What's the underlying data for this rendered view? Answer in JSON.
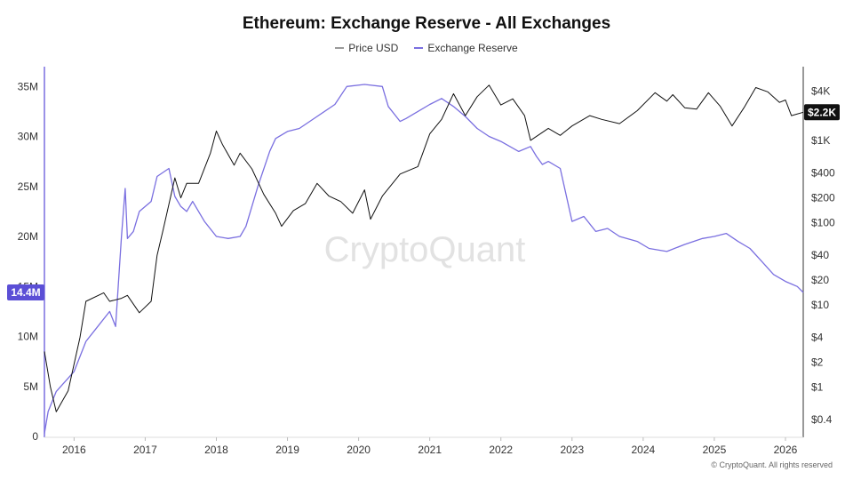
{
  "chart_data": {
    "type": "line",
    "title": "Ethereum: Exchange Reserve - All Exchanges",
    "legend_position": "top-center",
    "grid": false,
    "watermark": "CryptoQuant",
    "footer": "© CryptoQuant. All rights reserved",
    "x_ticks": [
      "2016",
      "2017",
      "2018",
      "2019",
      "2020",
      "2021",
      "2022",
      "2023",
      "2024",
      "2025",
      "2026"
    ],
    "x_range": [
      "2015-08",
      "2026-04"
    ],
    "left_axis": {
      "ticks": [
        "0",
        "5M",
        "10M",
        "15M",
        "20M",
        "25M",
        "30M",
        "35M"
      ],
      "range": [
        0,
        36000000
      ],
      "current_label": "14.4M",
      "current_value": 14400000,
      "color": "#6a5fd6"
    },
    "right_axis": {
      "scale": "log",
      "ticks": [
        "$4K",
        "$1K",
        "$400",
        "$200",
        "$100",
        "$40",
        "$20",
        "$10",
        "$4",
        "$2",
        "$1",
        "$0.4"
      ],
      "range": [
        0.25,
        6000
      ],
      "current_label": "$2.2K",
      "current_value": 2200,
      "color": "#111111"
    },
    "series": [
      {
        "name": "Exchange Reserve",
        "axis": "left",
        "color": "#7a6fe0",
        "points": [
          [
            "2015-08",
            0.3
          ],
          [
            "2015-08-20",
            2.5
          ],
          [
            "2015-10",
            4.5
          ],
          [
            "2016-01",
            6.5
          ],
          [
            "2016-03",
            9.5
          ],
          [
            "2016-05",
            11.0
          ],
          [
            "2016-07",
            12.5
          ],
          [
            "2016-08",
            11.0
          ],
          [
            "2016-09",
            20.0
          ],
          [
            "2016-09-20",
            24.8
          ],
          [
            "2016-10",
            19.8
          ],
          [
            "2016-11",
            20.5
          ],
          [
            "2016-12",
            22.5
          ],
          [
            "2017-02",
            23.5
          ],
          [
            "2017-03",
            26.0
          ],
          [
            "2017-05",
            26.8
          ],
          [
            "2017-06",
            24.0
          ],
          [
            "2017-07",
            23.0
          ],
          [
            "2017-08",
            22.5
          ],
          [
            "2017-09",
            23.5
          ],
          [
            "2017-10",
            22.5
          ],
          [
            "2017-11",
            21.5
          ],
          [
            "2018-01",
            20.0
          ],
          [
            "2018-03",
            19.8
          ],
          [
            "2018-05",
            20.0
          ],
          [
            "2018-06",
            21.0
          ],
          [
            "2018-08",
            25.0
          ],
          [
            "2018-10",
            28.5
          ],
          [
            "2018-11",
            29.8
          ],
          [
            "2019-01",
            30.5
          ],
          [
            "2019-03",
            30.8
          ],
          [
            "2019-06",
            32.0
          ],
          [
            "2019-09",
            33.2
          ],
          [
            "2019-11",
            35.0
          ],
          [
            "2020-02",
            35.2
          ],
          [
            "2020-05",
            35.0
          ],
          [
            "2020-06",
            33.0
          ],
          [
            "2020-08",
            31.5
          ],
          [
            "2020-09",
            31.8
          ],
          [
            "2020-11",
            32.5
          ],
          [
            "2021-01",
            33.2
          ],
          [
            "2021-03",
            33.8
          ],
          [
            "2021-05",
            33.0
          ],
          [
            "2021-07",
            32.0
          ],
          [
            "2021-09",
            30.8
          ],
          [
            "2021-11",
            30.0
          ],
          [
            "2022-01",
            29.5
          ],
          [
            "2022-04",
            28.5
          ],
          [
            "2022-06",
            29.0
          ],
          [
            "2022-07",
            28.0
          ],
          [
            "2022-08",
            27.2
          ],
          [
            "2022-09",
            27.5
          ],
          [
            "2022-11",
            26.8
          ],
          [
            "2023-01",
            21.5
          ],
          [
            "2023-03",
            22.0
          ],
          [
            "2023-05",
            20.5
          ],
          [
            "2023-07",
            20.8
          ],
          [
            "2023-09",
            20.0
          ],
          [
            "2023-12",
            19.5
          ],
          [
            "2024-02",
            18.8
          ],
          [
            "2024-05",
            18.5
          ],
          [
            "2024-08",
            19.2
          ],
          [
            "2024-11",
            19.8
          ],
          [
            "2025-01",
            20.0
          ],
          [
            "2025-03",
            20.3
          ],
          [
            "2025-05",
            19.5
          ],
          [
            "2025-07",
            18.8
          ],
          [
            "2025-09",
            17.5
          ],
          [
            "2025-11",
            16.2
          ],
          [
            "2026-01",
            15.5
          ],
          [
            "2026-03",
            15.0
          ],
          [
            "2026-04",
            14.4
          ]
        ]
      },
      {
        "name": "Price USD",
        "axis": "right",
        "color": "#111111",
        "points": [
          [
            "2015-08",
            2.7
          ],
          [
            "2015-09",
            1.0
          ],
          [
            "2015-10",
            0.5
          ],
          [
            "2015-12",
            0.9
          ],
          [
            "2016-02",
            4
          ],
          [
            "2016-03",
            11
          ],
          [
            "2016-06",
            14
          ],
          [
            "2016-07",
            11
          ],
          [
            "2016-09",
            12
          ],
          [
            "2016-10",
            13
          ],
          [
            "2016-12",
            8
          ],
          [
            "2017-02",
            11
          ],
          [
            "2017-03",
            40
          ],
          [
            "2017-04",
            80
          ],
          [
            "2017-06",
            350
          ],
          [
            "2017-07",
            200
          ],
          [
            "2017-08",
            300
          ],
          [
            "2017-10",
            300
          ],
          [
            "2017-12",
            700
          ],
          [
            "2018-01",
            1300
          ],
          [
            "2018-02",
            900
          ],
          [
            "2018-04",
            500
          ],
          [
            "2018-05",
            700
          ],
          [
            "2018-07",
            450
          ],
          [
            "2018-09",
            220
          ],
          [
            "2018-11",
            130
          ],
          [
            "2018-12",
            90
          ],
          [
            "2019-02",
            140
          ],
          [
            "2019-04",
            170
          ],
          [
            "2019-06",
            300
          ],
          [
            "2019-08",
            210
          ],
          [
            "2019-10",
            180
          ],
          [
            "2019-12",
            130
          ],
          [
            "2020-02",
            250
          ],
          [
            "2020-03",
            110
          ],
          [
            "2020-05",
            210
          ],
          [
            "2020-08",
            390
          ],
          [
            "2020-11",
            480
          ],
          [
            "2021-01",
            1200
          ],
          [
            "2021-03",
            1800
          ],
          [
            "2021-05",
            3700
          ],
          [
            "2021-07",
            2000
          ],
          [
            "2021-09",
            3400
          ],
          [
            "2021-11",
            4700
          ],
          [
            "2022-01",
            2700
          ],
          [
            "2022-03",
            3200
          ],
          [
            "2022-05",
            2000
          ],
          [
            "2022-06",
            1000
          ],
          [
            "2022-09",
            1400
          ],
          [
            "2022-11",
            1150
          ],
          [
            "2023-01",
            1500
          ],
          [
            "2023-04",
            2000
          ],
          [
            "2023-06",
            1800
          ],
          [
            "2023-09",
            1600
          ],
          [
            "2023-12",
            2300
          ],
          [
            "2024-03",
            3800
          ],
          [
            "2024-05",
            3000
          ],
          [
            "2024-06",
            3600
          ],
          [
            "2024-08",
            2500
          ],
          [
            "2024-10",
            2400
          ],
          [
            "2024-12",
            3800
          ],
          [
            "2025-02",
            2600
          ],
          [
            "2025-04",
            1500
          ],
          [
            "2025-06",
            2500
          ],
          [
            "2025-08",
            4400
          ],
          [
            "2025-10",
            3900
          ],
          [
            "2025-12",
            2900
          ],
          [
            "2026-01",
            3100
          ],
          [
            "2026-02",
            2000
          ],
          [
            "2026-04",
            2200
          ]
        ]
      }
    ]
  }
}
